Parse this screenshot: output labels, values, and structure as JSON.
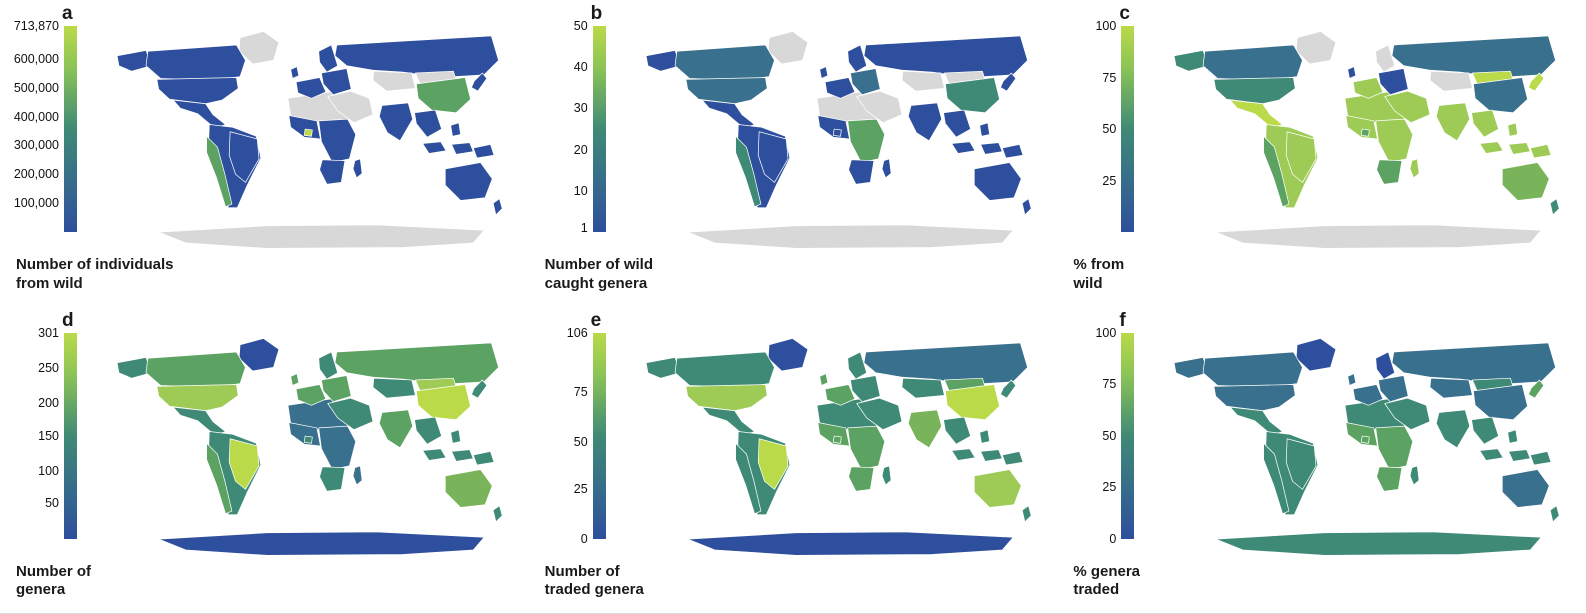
{
  "figure": {
    "background": "#ffffff",
    "nodata_color": "#d8d8d8",
    "palette": {
      "blue": "#2e4f9d",
      "blueteal": "#39708d",
      "teal": "#3f8a76",
      "green": "#5ca262",
      "midgreen": "#79b45a",
      "lightgreen": "#9ecb55",
      "brightgreen": "#bada49",
      "gray": "#d8d8d8"
    },
    "legend_gradient": [
      "#2e4f9d",
      "#3f8a76",
      "#8cc455",
      "#bada49"
    ],
    "panels": [
      {
        "label": "a",
        "caption": "Number of individuals\nfrom wild",
        "legend_ticks": [
          {
            "label": "713,870",
            "pos": 0.0
          },
          {
            "label": "600,000",
            "pos": 0.16
          },
          {
            "label": "500,000",
            "pos": 0.3
          },
          {
            "label": "400,000",
            "pos": 0.44
          },
          {
            "label": "300,000",
            "pos": 0.58
          },
          {
            "label": "200,000",
            "pos": 0.72
          },
          {
            "label": "100,000",
            "pos": 0.86
          }
        ],
        "default_region_color": "blue",
        "region_colors": {
          "greenland": "gray",
          "antarctica": "gray",
          "africa_north": "gray",
          "middle_east": "gray",
          "central_asia": "gray",
          "mongolia": "gray",
          "china": "green",
          "ghana": "brightgreen",
          "chile_strip": "green",
          "canada": "blue",
          "usa": "blue"
        }
      },
      {
        "label": "b",
        "caption": "Number of wild\ncaught genera",
        "legend_ticks": [
          {
            "label": "50",
            "pos": 0.0
          },
          {
            "label": "40",
            "pos": 0.2
          },
          {
            "label": "30",
            "pos": 0.4
          },
          {
            "label": "20",
            "pos": 0.6
          },
          {
            "label": "10",
            "pos": 0.8
          },
          {
            "label": "1",
            "pos": 0.98
          }
        ],
        "default_region_color": "blue",
        "region_colors": {
          "greenland": "gray",
          "antarctica": "gray",
          "africa_north": "gray",
          "middle_east": "gray",
          "central_asia": "gray",
          "mongolia": "gray",
          "china": "teal",
          "africa_east": "green",
          "chile_strip": "teal",
          "canada": "blueteal",
          "usa": "blueteal",
          "europe_east": "blueteal"
        }
      },
      {
        "label": "c",
        "caption": "% from\nwild",
        "legend_ticks": [
          {
            "label": "100",
            "pos": 0.0
          },
          {
            "label": "75",
            "pos": 0.25
          },
          {
            "label": "50",
            "pos": 0.5
          },
          {
            "label": "25",
            "pos": 0.75
          }
        ],
        "default_region_color": "lightgreen",
        "region_colors": {
          "greenland": "gray",
          "antarctica": "gray",
          "scandinavia": "gray",
          "central_asia": "gray",
          "alaska": "teal",
          "canada": "blueteal",
          "usa": "teal",
          "mexico": "brightgreen",
          "south_america": "lightgreen",
          "brazil": "lightgreen",
          "chile_strip": "green",
          "africa_south": "green",
          "ghana": "green",
          "uk": "blue",
          "europe_east": "blue",
          "russia": "blueteal",
          "mongolia": "brightgreen",
          "china": "blueteal",
          "japan": "brightgreen",
          "australia": "midgreen",
          "new_zealand": "teal"
        }
      },
      {
        "label": "d",
        "caption": "Number of\ngenera",
        "legend_ticks": [
          {
            "label": "301",
            "pos": 0.0
          },
          {
            "label": "250",
            "pos": 0.17
          },
          {
            "label": "200",
            "pos": 0.34
          },
          {
            "label": "150",
            "pos": 0.5
          },
          {
            "label": "100",
            "pos": 0.67
          },
          {
            "label": "50",
            "pos": 0.83
          }
        ],
        "default_region_color": "teal",
        "region_colors": {
          "greenland": "blue",
          "antarctica": "blue",
          "canada": "green",
          "usa": "lightgreen",
          "brazil": "brightgreen",
          "chile_strip": "green",
          "africa_north": "blueteal",
          "africa_west": "blueteal",
          "africa_east": "blueteal",
          "madagascar": "blueteal",
          "europe_west": "green",
          "uk": "green",
          "europe_east": "green",
          "russia": "green",
          "mongolia": "lightgreen",
          "china": "brightgreen",
          "india": "green",
          "australia": "midgreen"
        }
      },
      {
        "label": "e",
        "caption": "Number of\ntraded genera",
        "legend_ticks": [
          {
            "label": "106",
            "pos": 0.0
          },
          {
            "label": "75",
            "pos": 0.29
          },
          {
            "label": "50",
            "pos": 0.53
          },
          {
            "label": "25",
            "pos": 0.76
          },
          {
            "label": "0",
            "pos": 1.0
          }
        ],
        "default_region_color": "teal",
        "region_colors": {
          "greenland": "blue",
          "antarctica": "blue",
          "usa": "lightgreen",
          "brazil": "brightgreen",
          "africa_west": "green",
          "ghana": "green",
          "africa_east": "green",
          "africa_south": "green",
          "europe_west": "green",
          "uk": "green",
          "russia": "blueteal",
          "mongolia": "green",
          "china": "brightgreen",
          "india": "midgreen",
          "australia": "lightgreen"
        }
      },
      {
        "label": "f",
        "caption": "% genera\ntraded",
        "legend_ticks": [
          {
            "label": "100",
            "pos": 0.0
          },
          {
            "label": "75",
            "pos": 0.25
          },
          {
            "label": "50",
            "pos": 0.5
          },
          {
            "label": "25",
            "pos": 0.75
          },
          {
            "label": "0",
            "pos": 1.0
          }
        ],
        "default_region_color": "blueteal",
        "region_colors": {
          "greenland": "blue",
          "scandinavia": "blue",
          "antarctica": "teal",
          "mexico": "teal",
          "south_america": "teal",
          "brazil": "teal",
          "chile_strip": "teal",
          "africa_north": "teal",
          "africa_west": "green",
          "ghana": "green",
          "africa_east": "green",
          "africa_south": "green",
          "madagascar": "teal",
          "middle_east": "teal",
          "mongolia": "teal",
          "india": "teal",
          "se_asia": "teal",
          "japan": "green",
          "indonesia": "teal",
          "new_zealand": "teal"
        }
      }
    ]
  },
  "chart_data": [
    {
      "panel": "a",
      "type": "heatmap",
      "subtype": "choropleth_world_map",
      "title": "Number of individuals from wild",
      "scale_ticks": [
        713870,
        600000,
        500000,
        400000,
        300000,
        200000,
        100000
      ],
      "scale_max": 713870,
      "colormap": "blue (low) to yellow-green (high), gray = no data"
    },
    {
      "panel": "b",
      "type": "heatmap",
      "subtype": "choropleth_world_map",
      "title": "Number of wild caught genera",
      "scale_ticks": [
        50,
        40,
        30,
        20,
        10,
        1
      ],
      "scale_max": 50,
      "colormap": "blue (low) to yellow-green (high), gray = no data"
    },
    {
      "panel": "c",
      "type": "heatmap",
      "subtype": "choropleth_world_map",
      "title": "% from wild",
      "scale_ticks": [
        100,
        75,
        50,
        25
      ],
      "scale_max": 100,
      "colormap": "blue (low) to yellow-green (high), gray = no data"
    },
    {
      "panel": "d",
      "type": "heatmap",
      "subtype": "choropleth_world_map",
      "title": "Number of genera",
      "scale_ticks": [
        301,
        250,
        200,
        150,
        100,
        50
      ],
      "scale_max": 301,
      "colormap": "blue (low) to yellow-green (high)"
    },
    {
      "panel": "e",
      "type": "heatmap",
      "subtype": "choropleth_world_map",
      "title": "Number of traded genera",
      "scale_ticks": [
        106,
        75,
        50,
        25,
        0
      ],
      "scale_max": 106,
      "colormap": "blue (low) to yellow-green (high)"
    },
    {
      "panel": "f",
      "type": "heatmap",
      "subtype": "choropleth_world_map",
      "title": "% genera traded",
      "scale_ticks": [
        100,
        75,
        50,
        25,
        0
      ],
      "scale_max": 100,
      "colormap": "blue (low) to yellow-green (high)"
    }
  ]
}
